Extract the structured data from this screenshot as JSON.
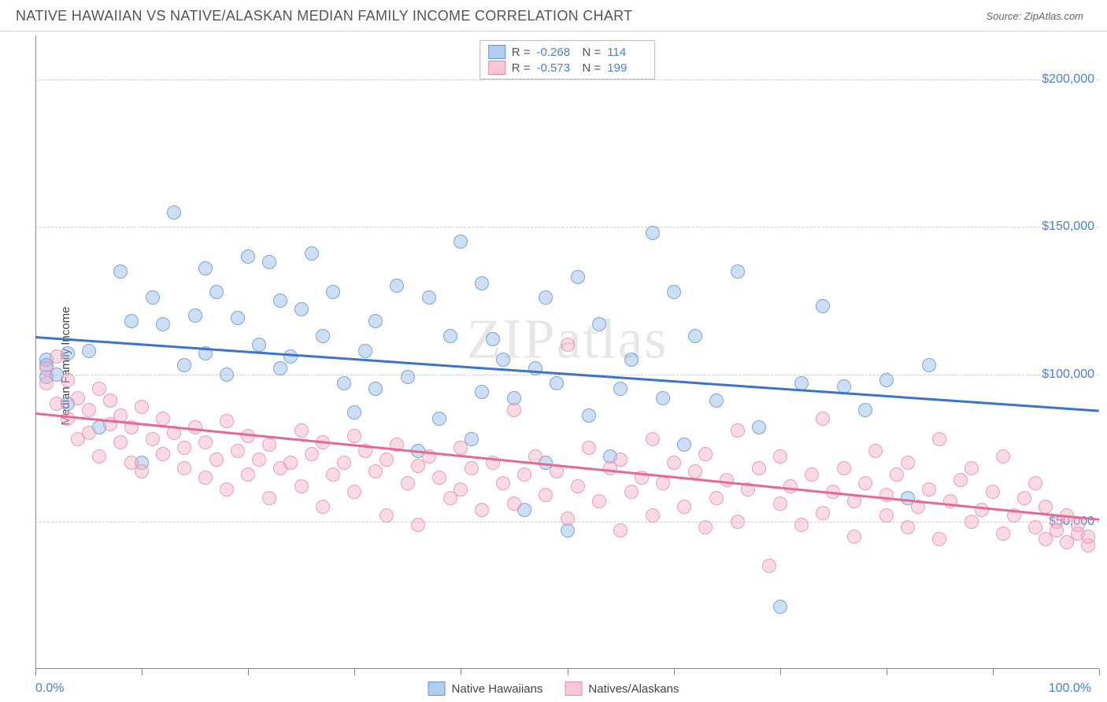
{
  "title": "NATIVE HAWAIIAN VS NATIVE/ALASKAN MEDIAN FAMILY INCOME CORRELATION CHART",
  "source_label": "Source: ZipAtlas.com",
  "watermark": "ZIPatlas",
  "y_axis_label": "Median Family Income",
  "chart": {
    "type": "scatter",
    "background_color": "#ffffff",
    "grid_color": "#cccccc",
    "grid_style": "dashed",
    "axis_color": "#888888",
    "x_axis": {
      "min": 0,
      "max": 100,
      "label_left": "0.0%",
      "label_right": "100.0%",
      "label_color": "#4a80d6",
      "tick_step": 10
    },
    "y_axis": {
      "min": 0,
      "max": 215000,
      "ticks": [
        50000,
        100000,
        150000,
        200000
      ],
      "tick_labels": [
        "$50,000",
        "$100,000",
        "$150,000",
        "$200,000"
      ],
      "label_color": "#4a80d6"
    },
    "series": [
      {
        "name": "Native Hawaiians",
        "marker_fill": "rgba(144,184,232,0.45)",
        "marker_stroke": "rgba(100,150,215,0.8)",
        "marker_size": 18,
        "line_color": "#3b74c8",
        "line_width": 2.5,
        "r_value": "-0.268",
        "n_value": "114",
        "trend_y_at_xmin": 113000,
        "trend_y_at_xmax": 88000,
        "points": [
          [
            1,
            105000
          ],
          [
            1,
            99000
          ],
          [
            1,
            103000
          ],
          [
            2,
            100000
          ],
          [
            3,
            107000
          ],
          [
            3,
            90000
          ],
          [
            5,
            108000
          ],
          [
            6,
            82000
          ],
          [
            8,
            135000
          ],
          [
            9,
            118000
          ],
          [
            10,
            70000
          ],
          [
            11,
            126000
          ],
          [
            12,
            117000
          ],
          [
            13,
            155000
          ],
          [
            14,
            103000
          ],
          [
            15,
            120000
          ],
          [
            16,
            136000
          ],
          [
            16,
            107000
          ],
          [
            17,
            128000
          ],
          [
            18,
            100000
          ],
          [
            19,
            119000
          ],
          [
            20,
            140000
          ],
          [
            21,
            110000
          ],
          [
            22,
            138000
          ],
          [
            23,
            102000
          ],
          [
            23,
            125000
          ],
          [
            24,
            106000
          ],
          [
            25,
            122000
          ],
          [
            26,
            141000
          ],
          [
            27,
            113000
          ],
          [
            28,
            128000
          ],
          [
            29,
            97000
          ],
          [
            30,
            87000
          ],
          [
            31,
            108000
          ],
          [
            32,
            118000
          ],
          [
            32,
            95000
          ],
          [
            34,
            130000
          ],
          [
            35,
            99000
          ],
          [
            36,
            74000
          ],
          [
            37,
            126000
          ],
          [
            38,
            85000
          ],
          [
            39,
            113000
          ],
          [
            40,
            145000
          ],
          [
            41,
            78000
          ],
          [
            42,
            94000
          ],
          [
            42,
            131000
          ],
          [
            43,
            112000
          ],
          [
            44,
            105000
          ],
          [
            45,
            92000
          ],
          [
            46,
            54000
          ],
          [
            47,
            102000
          ],
          [
            48,
            126000
          ],
          [
            48,
            70000
          ],
          [
            49,
            97000
          ],
          [
            50,
            47000
          ],
          [
            51,
            133000
          ],
          [
            52,
            86000
          ],
          [
            53,
            117000
          ],
          [
            54,
            72000
          ],
          [
            55,
            95000
          ],
          [
            56,
            105000
          ],
          [
            58,
            148000
          ],
          [
            59,
            92000
          ],
          [
            60,
            128000
          ],
          [
            61,
            76000
          ],
          [
            62,
            113000
          ],
          [
            64,
            91000
          ],
          [
            66,
            135000
          ],
          [
            68,
            82000
          ],
          [
            70,
            21000
          ],
          [
            72,
            97000
          ],
          [
            74,
            123000
          ],
          [
            76,
            96000
          ],
          [
            78,
            88000
          ],
          [
            80,
            98000
          ],
          [
            82,
            58000
          ],
          [
            84,
            103000
          ]
        ]
      },
      {
        "name": "Natives/Alaskans",
        "marker_fill": "rgba(245,175,195,0.45)",
        "marker_stroke": "rgba(230,140,170,0.8)",
        "marker_size": 18,
        "line_color": "#e56993",
        "line_width": 2.5,
        "r_value": "-0.573",
        "n_value": "199",
        "trend_y_at_xmin": 87000,
        "trend_y_at_xmax": 51000,
        "points": [
          [
            1,
            97000
          ],
          [
            1,
            102000
          ],
          [
            2,
            90000
          ],
          [
            2,
            106000
          ],
          [
            3,
            85000
          ],
          [
            3,
            98000
          ],
          [
            4,
            78000
          ],
          [
            4,
            92000
          ],
          [
            5,
            88000
          ],
          [
            5,
            80000
          ],
          [
            6,
            95000
          ],
          [
            6,
            72000
          ],
          [
            7,
            83000
          ],
          [
            7,
            91000
          ],
          [
            8,
            77000
          ],
          [
            8,
            86000
          ],
          [
            9,
            70000
          ],
          [
            9,
            82000
          ],
          [
            10,
            89000
          ],
          [
            10,
            67000
          ],
          [
            11,
            78000
          ],
          [
            12,
            85000
          ],
          [
            12,
            73000
          ],
          [
            13,
            80000
          ],
          [
            14,
            68000
          ],
          [
            14,
            75000
          ],
          [
            15,
            82000
          ],
          [
            16,
            65000
          ],
          [
            16,
            77000
          ],
          [
            17,
            71000
          ],
          [
            18,
            84000
          ],
          [
            18,
            61000
          ],
          [
            19,
            74000
          ],
          [
            20,
            79000
          ],
          [
            20,
            66000
          ],
          [
            21,
            71000
          ],
          [
            22,
            58000
          ],
          [
            22,
            76000
          ],
          [
            23,
            68000
          ],
          [
            24,
            70000
          ],
          [
            25,
            81000
          ],
          [
            25,
            62000
          ],
          [
            26,
            73000
          ],
          [
            27,
            55000
          ],
          [
            27,
            77000
          ],
          [
            28,
            66000
          ],
          [
            29,
            70000
          ],
          [
            30,
            79000
          ],
          [
            30,
            60000
          ],
          [
            31,
            74000
          ],
          [
            32,
            67000
          ],
          [
            33,
            52000
          ],
          [
            33,
            71000
          ],
          [
            34,
            76000
          ],
          [
            35,
            63000
          ],
          [
            36,
            69000
          ],
          [
            36,
            49000
          ],
          [
            37,
            72000
          ],
          [
            38,
            65000
          ],
          [
            39,
            58000
          ],
          [
            40,
            75000
          ],
          [
            40,
            61000
          ],
          [
            41,
            68000
          ],
          [
            42,
            54000
          ],
          [
            43,
            70000
          ],
          [
            44,
            63000
          ],
          [
            45,
            88000
          ],
          [
            45,
            56000
          ],
          [
            46,
            66000
          ],
          [
            47,
            72000
          ],
          [
            48,
            59000
          ],
          [
            49,
            67000
          ],
          [
            50,
            51000
          ],
          [
            50,
            110000
          ],
          [
            51,
            62000
          ],
          [
            52,
            75000
          ],
          [
            53,
            57000
          ],
          [
            54,
            68000
          ],
          [
            55,
            47000
          ],
          [
            55,
            71000
          ],
          [
            56,
            60000
          ],
          [
            57,
            65000
          ],
          [
            58,
            78000
          ],
          [
            58,
            52000
          ],
          [
            59,
            63000
          ],
          [
            60,
            70000
          ],
          [
            61,
            55000
          ],
          [
            62,
            67000
          ],
          [
            63,
            48000
          ],
          [
            63,
            73000
          ],
          [
            64,
            58000
          ],
          [
            65,
            64000
          ],
          [
            66,
            81000
          ],
          [
            66,
            50000
          ],
          [
            67,
            61000
          ],
          [
            68,
            68000
          ],
          [
            69,
            35000
          ],
          [
            70,
            56000
          ],
          [
            70,
            72000
          ],
          [
            71,
            62000
          ],
          [
            72,
            49000
          ],
          [
            73,
            66000
          ],
          [
            74,
            85000
          ],
          [
            74,
            53000
          ],
          [
            75,
            60000
          ],
          [
            76,
            68000
          ],
          [
            77,
            45000
          ],
          [
            77,
            57000
          ],
          [
            78,
            63000
          ],
          [
            79,
            74000
          ],
          [
            80,
            52000
          ],
          [
            80,
            59000
          ],
          [
            81,
            66000
          ],
          [
            82,
            48000
          ],
          [
            82,
            70000
          ],
          [
            83,
            55000
          ],
          [
            84,
            61000
          ],
          [
            85,
            78000
          ],
          [
            85,
            44000
          ],
          [
            86,
            57000
          ],
          [
            87,
            64000
          ],
          [
            88,
            50000
          ],
          [
            88,
            68000
          ],
          [
            89,
            54000
          ],
          [
            90,
            60000
          ],
          [
            91,
            46000
          ],
          [
            91,
            72000
          ],
          [
            92,
            52000
          ],
          [
            93,
            58000
          ],
          [
            94,
            48000
          ],
          [
            94,
            63000
          ],
          [
            95,
            44000
          ],
          [
            95,
            55000
          ],
          [
            96,
            50000
          ],
          [
            96,
            47000
          ],
          [
            97,
            43000
          ],
          [
            97,
            52000
          ],
          [
            98,
            46000
          ],
          [
            98,
            49000
          ],
          [
            99,
            42000
          ],
          [
            99,
            45000
          ]
        ]
      }
    ],
    "legend_top": {
      "r_label": "R =",
      "n_label": "N ="
    },
    "legend_bottom_labels": [
      "Native Hawaiians",
      "Natives/Alaskans"
    ]
  }
}
